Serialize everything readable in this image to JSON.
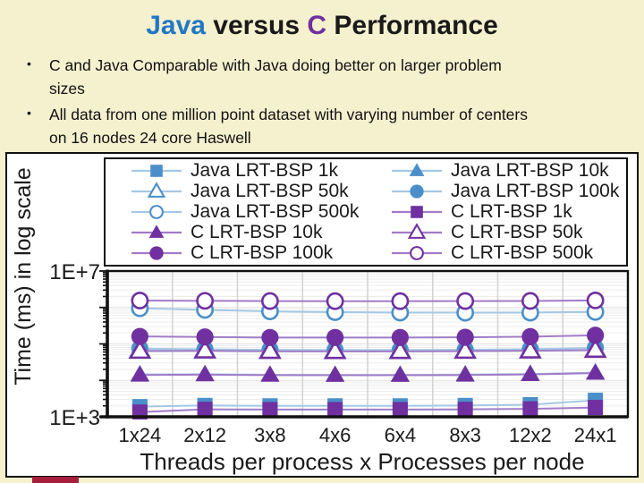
{
  "slide": {
    "title_parts": [
      {
        "text": "Java",
        "style": "java"
      },
      {
        "text": " versus ",
        "style": "plain"
      },
      {
        "text": "C",
        "style": "c"
      },
      {
        "text": " Performance",
        "style": "plain"
      }
    ],
    "bullet_glyph": "•",
    "bullets": [
      {
        "line1": "C and Java Comparable with Java doing better on larger problem",
        "line2": "sizes"
      },
      {
        "line1": "All data from one million point dataset with varying number of centers",
        "line2": "on 16 nodes 24 core Haswell"
      }
    ]
  },
  "colors": {
    "background": "#F5F0CE",
    "title_java_blue": "#2178C6",
    "title_c_purple": "#7030A0",
    "java_marker": "#4A8FC9",
    "java_line": "#A5C8E4",
    "c_marker": "#7030A0",
    "c_line": "#A07CC8",
    "gridline_vertical": "#D2D2D2",
    "gridline_minor": "#EDEDED",
    "axis_black": "#111111",
    "accent_bar": "#A61E3C"
  },
  "chart_data": {
    "type": "line",
    "x_axis_title": "Threads per process x Processes per node",
    "y_axis_title": "Time (ms) in log scale",
    "y_scale": "log",
    "ylim": [
      1000,
      10000000
    ],
    "y_tick_labels": [
      {
        "value": 10000000,
        "label": "1E+7"
      },
      {
        "value": 1000,
        "label": "1E+3"
      }
    ],
    "categories": [
      "1x24",
      "2x12",
      "3x8",
      "4x6",
      "6x4",
      "8x3",
      "12x2",
      "24x1"
    ],
    "legend_position": "top",
    "grid": "vertical category separators + faint log minor horizontals",
    "series": [
      {
        "name": "Java LRT-BSP 1k",
        "family": "java",
        "marker": "square",
        "open": false,
        "values": [
          1900,
          2050,
          2000,
          2000,
          2000,
          2050,
          2150,
          2850
        ]
      },
      {
        "name": "Java LRT-BSP 10k",
        "family": "java",
        "marker": "triangle",
        "open": false,
        "values": [
          14500,
          14700,
          14200,
          14100,
          14100,
          14400,
          15000,
          16300
        ]
      },
      {
        "name": "Java LRT-BSP 50k",
        "family": "java",
        "marker": "triangle",
        "open": true,
        "values": [
          66000,
          66500,
          64500,
          64200,
          64200,
          65000,
          66000,
          69500
        ]
      },
      {
        "name": "Java LRT-BSP 100k",
        "family": "java",
        "marker": "circle",
        "open": false,
        "values": [
          74000,
          71000,
          69000,
          68000,
          68000,
          69000,
          71500,
          78000
        ]
      },
      {
        "name": "Java LRT-BSP 500k",
        "family": "java",
        "marker": "circle",
        "open": true,
        "values": [
          950000,
          860000,
          780000,
          745000,
          725000,
          720000,
          725000,
          755000
        ]
      },
      {
        "name": "C LRT-BSP 1k",
        "family": "c",
        "marker": "square",
        "open": false,
        "values": [
          1350,
          1600,
          1580,
          1580,
          1580,
          1600,
          1650,
          1800
        ]
      },
      {
        "name": "C LRT-BSP 10k",
        "family": "c",
        "marker": "triangle",
        "open": false,
        "values": [
          14000,
          14300,
          13900,
          13800,
          13800,
          14000,
          14500,
          15800
        ]
      },
      {
        "name": "C LRT-BSP 50k",
        "family": "c",
        "marker": "triangle",
        "open": true,
        "values": [
          63500,
          64500,
          62800,
          62500,
          62500,
          63500,
          64800,
          67500
        ]
      },
      {
        "name": "C LRT-BSP 100k",
        "family": "c",
        "marker": "circle",
        "open": false,
        "values": [
          160000,
          155000,
          150000,
          150000,
          150000,
          152000,
          158000,
          172000
        ]
      },
      {
        "name": "C LRT-BSP 500k",
        "family": "c",
        "marker": "circle",
        "open": true,
        "values": [
          1550000,
          1520000,
          1500000,
          1490000,
          1490000,
          1500000,
          1510000,
          1560000
        ]
      }
    ]
  }
}
